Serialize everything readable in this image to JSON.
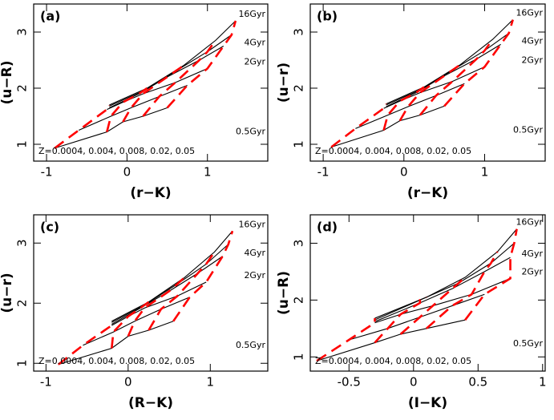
{
  "chart_data": [
    {
      "type": "line",
      "label": "(a)",
      "xlabel": "(r−K)",
      "ylabel": "(u−R)",
      "xlim": [
        -1.16,
        1.75
      ],
      "ylim": [
        0.7,
        3.5
      ],
      "xticks": [
        -1,
        0,
        1
      ],
      "yticks": [
        1,
        2,
        3
      ],
      "line_color": "#000000",
      "z_color": "#ff0000",
      "series": [
        {
          "x": [
            -0.9,
            -0.25,
            -0.05,
            0.2,
            0.5
          ],
          "values": [
            0.93,
            1.22,
            1.4,
            1.5,
            1.65
          ]
        },
        {
          "x": [
            -0.6,
            -0.2,
            0.05,
            0.4,
            0.75
          ],
          "values": [
            1.25,
            1.5,
            1.65,
            1.85,
            2.05
          ]
        },
        {
          "x": [
            -0.25,
            -0.05,
            0.2,
            0.6,
            1.0
          ],
          "values": [
            1.62,
            1.75,
            1.9,
            2.1,
            2.35
          ]
        },
        {
          "x": [
            -0.22,
            0.15,
            0.5,
            0.9,
            1.2
          ],
          "values": [
            1.65,
            1.9,
            2.2,
            2.5,
            2.75
          ]
        },
        {
          "x": [
            -0.22,
            0.2,
            0.6,
            1.0,
            1.3
          ],
          "values": [
            1.68,
            1.95,
            2.3,
            2.65,
            2.95
          ]
        },
        {
          "x": [
            -0.22,
            0.25,
            0.7,
            1.1,
            1.35
          ],
          "values": [
            1.7,
            2.0,
            2.4,
            2.85,
            3.2
          ]
        }
      ],
      "annotations": [
        "0.5Gyr",
        "2Gyr",
        "4Gyr",
        "16Gyr"
      ],
      "note": "Z=0.0004, 0.004, 0.008, 0.02, 0.05"
    },
    {
      "type": "line",
      "label": "(b)",
      "xlabel": "(r−K)",
      "ylabel": "(u−r)",
      "xlim": [
        -1.16,
        1.75
      ],
      "ylim": [
        0.7,
        3.5
      ],
      "xticks": [
        -1,
        0,
        1
      ],
      "yticks": [
        1,
        2,
        3
      ],
      "line_color": "#000000",
      "z_color": "#ff0000",
      "series": [
        {
          "x": [
            -0.9,
            -0.25,
            -0.05,
            0.2,
            0.5
          ],
          "values": [
            0.95,
            1.25,
            1.42,
            1.52,
            1.68
          ]
        },
        {
          "x": [
            -0.6,
            -0.2,
            0.05,
            0.4,
            0.75
          ],
          "values": [
            1.28,
            1.52,
            1.67,
            1.87,
            2.08
          ]
        },
        {
          "x": [
            -0.25,
            -0.05,
            0.2,
            0.6,
            1.0
          ],
          "values": [
            1.64,
            1.77,
            1.92,
            2.12,
            2.38
          ]
        },
        {
          "x": [
            -0.22,
            0.15,
            0.5,
            0.9,
            1.2
          ],
          "values": [
            1.67,
            1.92,
            2.22,
            2.52,
            2.78
          ]
        },
        {
          "x": [
            -0.22,
            0.2,
            0.6,
            1.0,
            1.3
          ],
          "values": [
            1.7,
            1.97,
            2.32,
            2.67,
            2.98
          ]
        },
        {
          "x": [
            -0.22,
            0.25,
            0.7,
            1.1,
            1.35
          ],
          "values": [
            1.72,
            2.02,
            2.42,
            2.87,
            3.22
          ]
        }
      ],
      "annotations": [
        "0.5Gyr",
        "2Gyr",
        "4Gyr",
        "16Gyr"
      ],
      "note": "Z=0.0004, 0.004, 0.008, 0.02, 0.05"
    },
    {
      "type": "line",
      "label": "(c)",
      "xlabel": "(R−K)",
      "ylabel": "(u−r)",
      "xlim": [
        -1.15,
        1.7
      ],
      "ylim": [
        0.87,
        3.47
      ],
      "xticks": [
        -1,
        0,
        1
      ],
      "yticks": [
        1,
        2,
        3
      ],
      "line_color": "#000000",
      "z_color": "#ff0000",
      "series": [
        {
          "x": [
            -0.85,
            -0.2,
            0.0,
            0.25,
            0.55
          ],
          "values": [
            0.98,
            1.25,
            1.45,
            1.55,
            1.7
          ]
        },
        {
          "x": [
            -0.55,
            -0.18,
            0.08,
            0.4,
            0.75
          ],
          "values": [
            1.3,
            1.52,
            1.7,
            1.9,
            2.1
          ]
        },
        {
          "x": [
            -0.2,
            0.0,
            0.2,
            0.6,
            0.95
          ],
          "values": [
            1.63,
            1.78,
            1.92,
            2.12,
            2.35
          ]
        },
        {
          "x": [
            -0.2,
            0.15,
            0.5,
            0.85,
            1.15
          ],
          "values": [
            1.65,
            1.92,
            2.2,
            2.5,
            2.78
          ]
        },
        {
          "x": [
            -0.2,
            0.2,
            0.6,
            0.95,
            1.22
          ],
          "values": [
            1.68,
            1.97,
            2.32,
            2.65,
            2.98
          ]
        },
        {
          "x": [
            -0.2,
            0.25,
            0.68,
            1.05,
            1.27
          ],
          "values": [
            1.7,
            2.02,
            2.42,
            2.85,
            3.2
          ]
        }
      ],
      "annotations": [
        "0.5Gyr",
        "2Gyr",
        "4Gyr",
        "16Gyr"
      ],
      "note": "Z=0.0004, 0.004, 0.008, 0.02, 0.05"
    },
    {
      "type": "line",
      "label": "(d)",
      "xlabel": "(I−K)",
      "ylabel": "(u−R)",
      "xlim": [
        -0.8,
        1.02
      ],
      "ylim": [
        0.75,
        3.5
      ],
      "xticks": [
        -0.5,
        0,
        0.5,
        1
      ],
      "yticks": [
        1,
        2,
        3
      ],
      "line_color": "#000000",
      "z_color": "#ff0000",
      "series": [
        {
          "x": [
            -0.75,
            -0.3,
            -0.1,
            0.1,
            0.4
          ],
          "values": [
            0.93,
            1.25,
            1.4,
            1.5,
            1.65
          ]
        },
        {
          "x": [
            -0.5,
            -0.2,
            0.05,
            0.3,
            0.55
          ],
          "values": [
            1.3,
            1.5,
            1.7,
            1.9,
            2.1
          ]
        },
        {
          "x": [
            -0.3,
            -0.1,
            0.15,
            0.45,
            0.75
          ],
          "values": [
            1.6,
            1.75,
            1.9,
            2.1,
            2.38
          ]
        },
        {
          "x": [
            -0.3,
            0.05,
            0.3,
            0.55,
            0.75
          ],
          "values": [
            1.62,
            1.95,
            2.2,
            2.5,
            2.75
          ]
        },
        {
          "x": [
            -0.3,
            0.05,
            0.35,
            0.6,
            0.78
          ],
          "values": [
            1.65,
            2.0,
            2.3,
            2.65,
            3.0
          ]
        },
        {
          "x": [
            -0.3,
            0.1,
            0.4,
            0.65,
            0.8
          ],
          "values": [
            1.68,
            2.05,
            2.4,
            2.85,
            3.25
          ]
        }
      ],
      "annotations": [
        "0.5Gyr",
        "2Gyr",
        "4Gyr",
        "16Gyr"
      ],
      "note": "Z=0.0004, 0.004, 0.008, 0.02, 0.05"
    }
  ]
}
